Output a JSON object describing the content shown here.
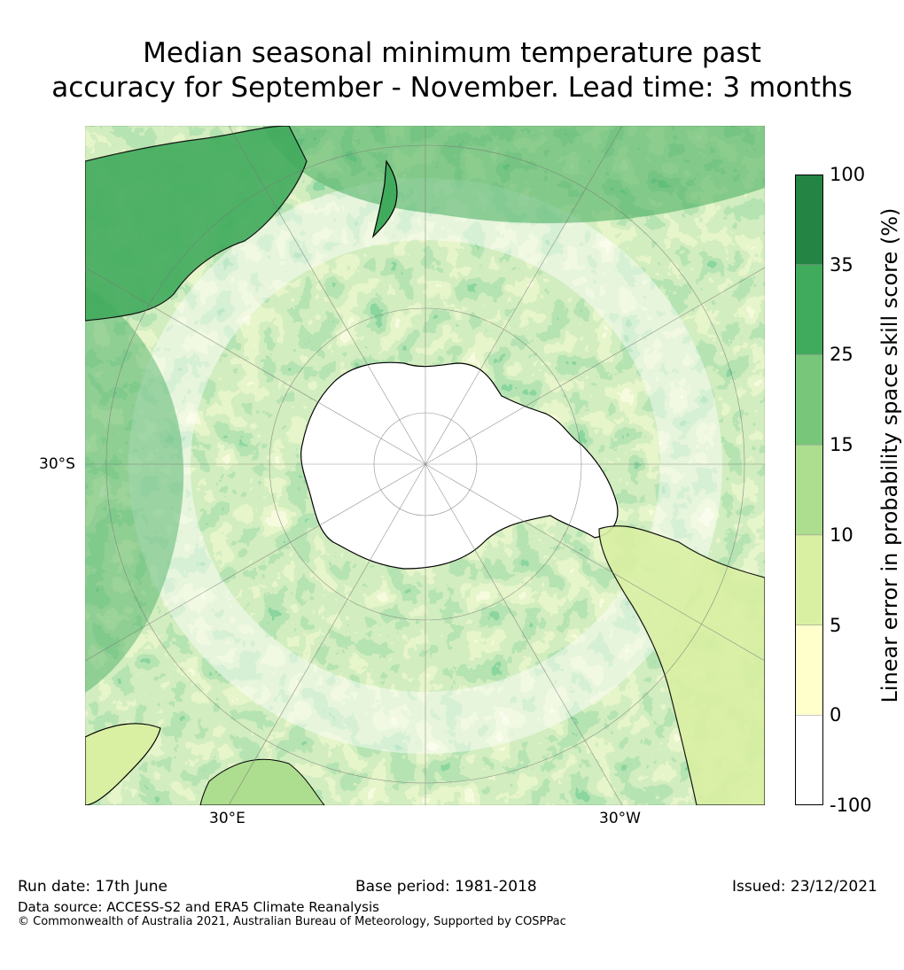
{
  "title": {
    "line1": "Median seasonal minimum temperature past",
    "line2": "accuracy for September - November. Lead time: 3 months"
  },
  "map": {
    "projection": "south-polar stereographic",
    "lat_labels": [
      "30°S"
    ],
    "lon_labels": [
      "30°E",
      "30°W"
    ]
  },
  "colorbar": {
    "label": "Linear error in probability space skill score (%)",
    "ticks": [
      "100",
      "35",
      "25",
      "15",
      "10",
      "5",
      "0",
      "-100"
    ],
    "bins": [
      {
        "range": "-100 to 0",
        "color": "#ffffff"
      },
      {
        "range": "0 to 5",
        "color": "#ffffcc"
      },
      {
        "range": "5 to 10",
        "color": "#d9f0a3"
      },
      {
        "range": "10 to 15",
        "color": "#addd8e"
      },
      {
        "range": "15 to 25",
        "color": "#78c679"
      },
      {
        "range": "25 to 35",
        "color": "#41ab5d"
      },
      {
        "range": "35 to 100",
        "color": "#238443"
      }
    ]
  },
  "footer": {
    "run_date": "Run date: 17th June",
    "base_period": "Base period: 1981-2018",
    "issued": "Issued: 23/12/2021",
    "data_source": "Data source: ACCESS-S2 and ERA5 Climate Reanalysis",
    "copyright": "© Commonwealth of Australia 2021, Australian Bureau of Meteorology, Supported by COSPPac"
  }
}
